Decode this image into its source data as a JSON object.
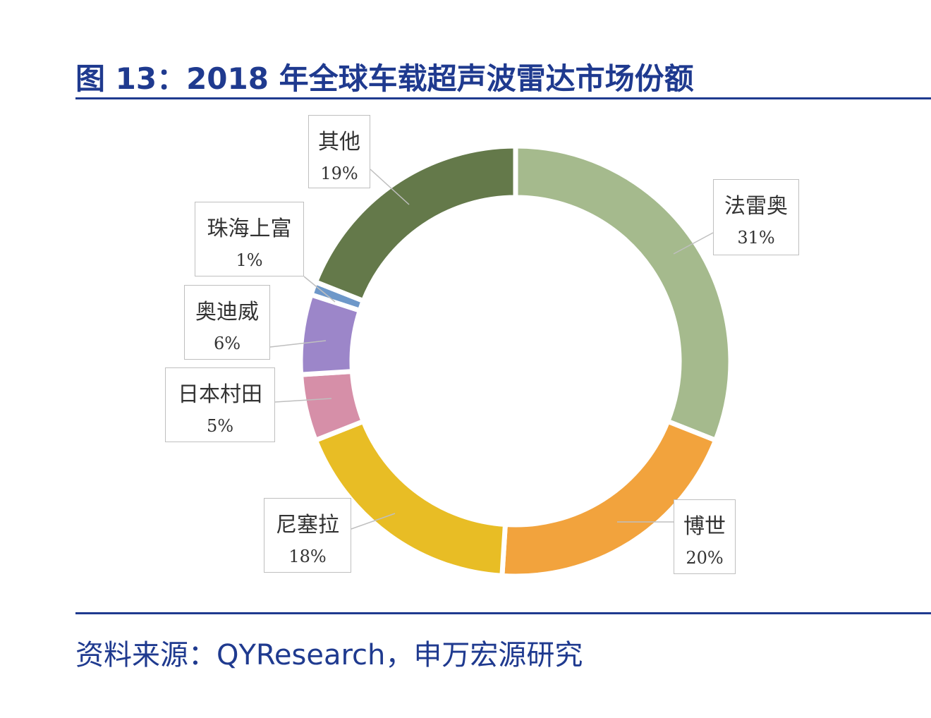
{
  "chart_data": {
    "type": "pie",
    "donut": true,
    "title": "图 13：2018 年全球车载超声波雷达市场份额",
    "categories": [
      "法雷奥",
      "博世",
      "尼塞拉",
      "日本村田",
      "奥迪威",
      "珠海上富",
      "其他"
    ],
    "values": [
      31,
      20,
      18,
      5,
      6,
      1,
      19
    ],
    "labels": [
      "31%",
      "20%",
      "18%",
      "5%",
      "6%",
      "1%",
      "19%"
    ],
    "colors": [
      "#a5ba8d",
      "#f2a33d",
      "#e8bd25",
      "#d68fa8",
      "#9c86c9",
      "#6e98c9",
      "#64794a"
    ],
    "source": "资料来源：QYResearch，申万宏源研究"
  }
}
